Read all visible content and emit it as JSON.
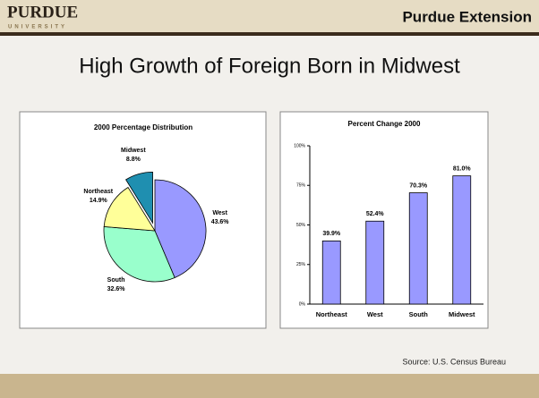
{
  "header": {
    "logo": "PURDUE",
    "logo_sub": "UNIVERSITY",
    "brand": "Purdue Extension"
  },
  "title": "High Growth of Foreign Born in Midwest",
  "source": "Source: U.S. Census Bureau",
  "chart_data": [
    {
      "type": "pie",
      "title": "2000 Percentage Distribution",
      "categories": [
        "West",
        "South",
        "Northeast",
        "Midwest"
      ],
      "values": [
        43.6,
        32.6,
        14.9,
        8.8
      ],
      "value_labels": [
        "43.6%",
        "32.6%",
        "14.9%",
        "8.8%"
      ],
      "colors": [
        "#9999ff",
        "#99ffcc",
        "#ffff99",
        "#1f8fb0"
      ]
    },
    {
      "type": "bar",
      "title": "Percent Change 2000",
      "categories": [
        "Northeast",
        "West",
        "South",
        "Midwest"
      ],
      "values": [
        39.9,
        52.4,
        70.3,
        81.0
      ],
      "value_labels": [
        "39.9%",
        "52.4%",
        "70.3%",
        "81.0%"
      ],
      "color": "#9999ff",
      "ylim": [
        0,
        100
      ],
      "yticks": [
        {
          "value": 0,
          "label": "0%"
        },
        {
          "value": 25,
          "label": "25%"
        },
        {
          "value": 50,
          "label": "50%"
        },
        {
          "value": 75,
          "label": "75%"
        },
        {
          "value": 100,
          "label": "100%"
        }
      ]
    }
  ]
}
